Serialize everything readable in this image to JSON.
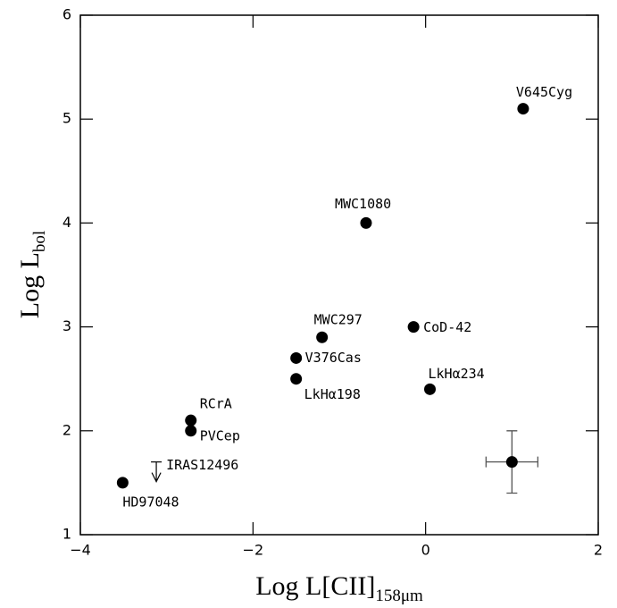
{
  "chart_data": {
    "type": "scatter",
    "xlabel": "Log L[CII]",
    "xlabel_sub": "158μm",
    "ylabel": "Log L",
    "ylabel_sub": "bol",
    "xlim": [
      -4,
      2
    ],
    "ylim": [
      1,
      6
    ],
    "xticks": [
      {
        "value": -4,
        "label": "−4"
      },
      {
        "value": -2,
        "label": "−2"
      },
      0,
      2
    ],
    "yticks": [
      1,
      2,
      3,
      4,
      5,
      6
    ],
    "color": "#000000",
    "points": [
      {
        "label": "V645Cyg",
        "x": 1.13,
        "y": 5.1
      },
      {
        "label": "MWC1080",
        "x": -0.69,
        "y": 4.0
      },
      {
        "label": "MWC297",
        "x": -1.2,
        "y": 2.9
      },
      {
        "label": "CoD-42",
        "x": -0.14,
        "y": 3.0
      },
      {
        "label": "V376Cas",
        "x": -1.5,
        "y": 2.7
      },
      {
        "label": "LkHα198",
        "x": -1.5,
        "y": 2.5
      },
      {
        "label": "LkHα234",
        "x": 0.05,
        "y": 2.4
      },
      {
        "label": "RCrA",
        "x": -2.72,
        "y": 2.1
      },
      {
        "label": "PVCep",
        "x": -2.72,
        "y": 2.0
      },
      {
        "label": "HD97048",
        "x": -3.51,
        "y": 1.5
      }
    ],
    "upper_limits": [
      {
        "label": "IRAS12496",
        "x": -3.12,
        "y": 1.7
      }
    ],
    "error_sample": {
      "x": 1.0,
      "y": 1.7,
      "xerr": 0.3,
      "yerr": 0.3
    }
  }
}
